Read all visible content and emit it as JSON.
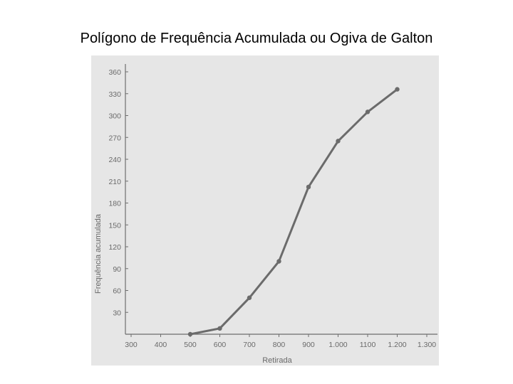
{
  "slide": {
    "title": "Polígono de Frequência Acumulada ou Ogiva de Galton"
  },
  "colors": {
    "background": "#ffffff",
    "chart_background": "#e6e6e6",
    "line": "#6b6b6b",
    "axis": "#6e6e6e",
    "text": "#6a6a6a"
  },
  "chart_data": {
    "type": "line",
    "title": "",
    "xlabel": "Retirada",
    "ylabel": "Frequência acumulada",
    "xlim": [
      300,
      1300
    ],
    "ylim": [
      0,
      360
    ],
    "x_ticks": [
      300,
      400,
      500,
      600,
      700,
      800,
      900,
      1000,
      1100,
      1200,
      1300
    ],
    "x_tick_labels": [
      "300",
      "400",
      "500",
      "600",
      "700",
      "800",
      "900",
      "1.000",
      "1100",
      "1.200",
      "1.300"
    ],
    "y_ticks": [
      30,
      60,
      90,
      120,
      150,
      180,
      210,
      240,
      270,
      300,
      330,
      360
    ],
    "y_tick_labels": [
      "30",
      "60",
      "90",
      "120",
      "150",
      "180",
      "210",
      "240",
      "270",
      "300",
      "330",
      "360"
    ],
    "grid": false,
    "legend": "none",
    "series": [
      {
        "x": [
          500,
          600,
          700,
          800,
          900,
          1000,
          1100,
          1200
        ],
        "y": [
          0,
          8,
          50,
          100,
          202,
          265,
          305,
          336
        ]
      }
    ]
  }
}
